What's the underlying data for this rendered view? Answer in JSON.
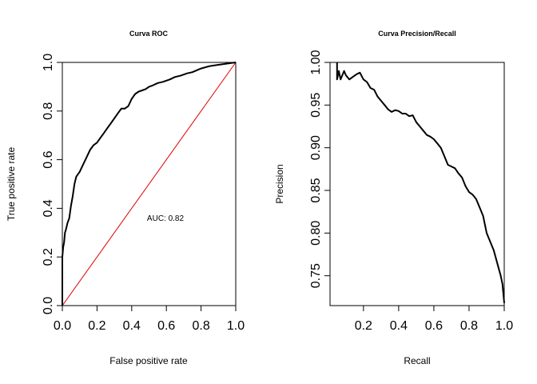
{
  "chart_data": [
    {
      "type": "line",
      "title": "Curva ROC",
      "xlabel": "False positive rate",
      "ylabel": "True positive rate",
      "xlim": [
        0,
        1
      ],
      "ylim": [
        0,
        1
      ],
      "xticks": [
        "0.0",
        "0.2",
        "0.4",
        "0.6",
        "0.8",
        "1.0"
      ],
      "yticks": [
        "0.0",
        "0.2",
        "0.4",
        "0.6",
        "0.8",
        "1.0"
      ],
      "grid": false,
      "annotation": "AUC: 0.82",
      "reference_line": {
        "x": [
          0,
          1
        ],
        "y": [
          0,
          1
        ],
        "color": "#e00000"
      },
      "series": [
        {
          "color": "#000000",
          "x": [
            0,
            0,
            0.005,
            0.01,
            0.015,
            0.02,
            0.03,
            0.04,
            0.05,
            0.06,
            0.07,
            0.08,
            0.09,
            0.1,
            0.12,
            0.14,
            0.16,
            0.18,
            0.2,
            0.22,
            0.24,
            0.26,
            0.28,
            0.3,
            0.32,
            0.34,
            0.36,
            0.38,
            0.4,
            0.42,
            0.44,
            0.46,
            0.48,
            0.5,
            0.52,
            0.55,
            0.58,
            0.6,
            0.62,
            0.65,
            0.68,
            0.7,
            0.72,
            0.75,
            0.8,
            0.85,
            0.9,
            0.95,
            1.0
          ],
          "y": [
            0,
            0.2,
            0.24,
            0.26,
            0.3,
            0.31,
            0.34,
            0.36,
            0.41,
            0.45,
            0.5,
            0.53,
            0.54,
            0.55,
            0.58,
            0.61,
            0.64,
            0.66,
            0.67,
            0.69,
            0.71,
            0.73,
            0.75,
            0.77,
            0.79,
            0.81,
            0.81,
            0.82,
            0.85,
            0.87,
            0.88,
            0.885,
            0.89,
            0.9,
            0.905,
            0.915,
            0.92,
            0.925,
            0.93,
            0.94,
            0.945,
            0.95,
            0.955,
            0.96,
            0.975,
            0.985,
            0.99,
            0.995,
            1.0
          ]
        }
      ]
    },
    {
      "type": "line",
      "title": "Curva Precision/Recall",
      "xlabel": "Recall",
      "ylabel": "Precision",
      "xlim": [
        0.01,
        1.0
      ],
      "ylim": [
        0.715,
        1.0
      ],
      "xticks": [
        "0.2",
        "0.4",
        "0.6",
        "0.8",
        "1.0"
      ],
      "yticks": [
        "0.75",
        "0.80",
        "0.85",
        "0.90",
        "0.95",
        "1.00"
      ],
      "grid": false,
      "series": [
        {
          "color": "#000000",
          "x": [
            0.05,
            0.05,
            0.055,
            0.06,
            0.07,
            0.08,
            0.09,
            0.1,
            0.12,
            0.14,
            0.16,
            0.18,
            0.2,
            0.22,
            0.24,
            0.26,
            0.28,
            0.3,
            0.32,
            0.34,
            0.36,
            0.38,
            0.4,
            0.42,
            0.44,
            0.46,
            0.48,
            0.5,
            0.52,
            0.54,
            0.56,
            0.58,
            0.6,
            0.62,
            0.64,
            0.66,
            0.68,
            0.7,
            0.72,
            0.74,
            0.76,
            0.78,
            0.8,
            0.82,
            0.84,
            0.86,
            0.88,
            0.9,
            0.92,
            0.94,
            0.96,
            0.98,
            0.99,
            1.0
          ],
          "y": [
            1.0,
            0.98,
            0.985,
            0.99,
            0.98,
            0.985,
            0.99,
            0.985,
            0.98,
            0.983,
            0.986,
            0.988,
            0.98,
            0.977,
            0.97,
            0.968,
            0.96,
            0.955,
            0.95,
            0.945,
            0.942,
            0.944,
            0.943,
            0.94,
            0.94,
            0.937,
            0.938,
            0.93,
            0.925,
            0.92,
            0.915,
            0.913,
            0.91,
            0.905,
            0.9,
            0.89,
            0.88,
            0.878,
            0.876,
            0.87,
            0.865,
            0.855,
            0.848,
            0.845,
            0.84,
            0.83,
            0.82,
            0.8,
            0.79,
            0.78,
            0.765,
            0.75,
            0.74,
            0.718
          ]
        }
      ]
    }
  ]
}
